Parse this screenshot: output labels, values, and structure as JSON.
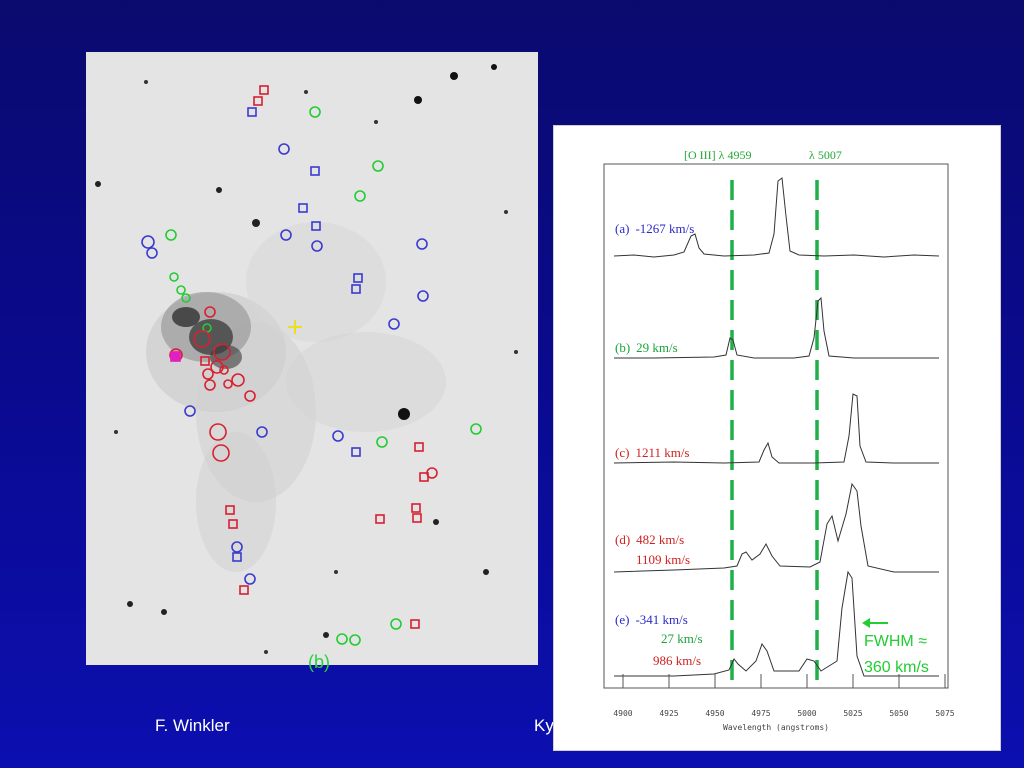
{
  "credits": {
    "left": "F. Winkler",
    "right": "Ky"
  },
  "image_panel": {
    "label": "(b)"
  },
  "spectra": {
    "line_labels": {
      "oiii_4959": "[O III] λ 4959",
      "oiii_5007": "λ 5007"
    },
    "x_axis": {
      "label": "Wavelength (angstroms)",
      "ticks": [
        "4900",
        "4925",
        "4950",
        "4975",
        "5000",
        "5025",
        "5050",
        "5075"
      ]
    },
    "rows": [
      {
        "tag": "(a)",
        "velocities": [
          {
            "text": "-1267 km/s",
            "color": "#2a2ac8"
          }
        ]
      },
      {
        "tag": "(b)",
        "velocities": [
          {
            "text": "29 km/s",
            "color": "#1aa33a"
          }
        ]
      },
      {
        "tag": "(c)",
        "velocities": [
          {
            "text": "1211 km/s",
            "color": "#d02020"
          }
        ]
      },
      {
        "tag": "(d)",
        "velocities": [
          {
            "text": "482 km/s",
            "color": "#d02020"
          },
          {
            "text": "1109 km/s",
            "color": "#d02020"
          }
        ]
      },
      {
        "tag": "(e)",
        "velocities": [
          {
            "text": "-341 km/s",
            "color": "#2a2ac8"
          },
          {
            "text": "27 km/s",
            "color": "#1aa33a"
          },
          {
            "text": "986 km/s",
            "color": "#d02020"
          }
        ]
      }
    ],
    "fwhm_line1": "FWHM ≈",
    "fwhm_line2": "360 km/s"
  },
  "colors": {
    "background": "#0a0a8c",
    "green": "#22cc33",
    "blue": "#3030d0",
    "red": "#d82030"
  }
}
